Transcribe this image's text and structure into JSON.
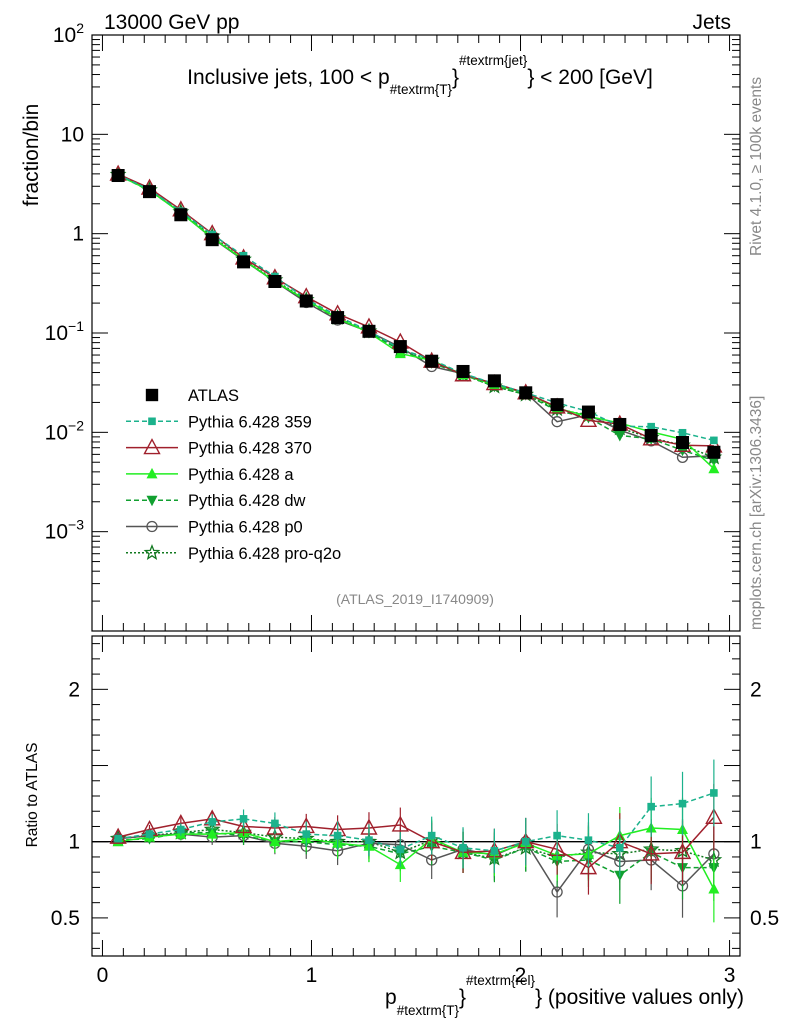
{
  "header": {
    "left": "13000 GeV pp",
    "right": "Jets"
  },
  "side_text": {
    "rivet": "Rivet 4.1.0, ≥ 100k events",
    "mcplots": "mcplots.cern.ch [arXiv:1306.3436]"
  },
  "analysis_id": "(ATLAS_2019_I1740909)",
  "chart_data": [
    {
      "type": "line",
      "scale": "log",
      "title": "Inclusive jets, 100 < p_{#textrm{T}}^{#textrm{jet}} < 200 [GeV]",
      "title_parts": {
        "before": "Inclusive jets, 100 < p",
        "sub": "#textrm{T}",
        "sup": "#textrm{jet}",
        "after": " < 200 [GeV]"
      },
      "ylabel": "fraction/bin",
      "xlim": [
        -0.05,
        3.05
      ],
      "ylim": [
        0.0001,
        100
      ],
      "yticks": [
        {
          "value": 100,
          "base": "10",
          "exp": "2"
        },
        {
          "value": 10,
          "base": "10",
          "exp": ""
        },
        {
          "value": 1,
          "base": "1",
          "exp": ""
        },
        {
          "value": 0.1,
          "base": "10",
          "exp": "−1"
        },
        {
          "value": 0.01,
          "base": "10",
          "exp": "−2"
        },
        {
          "value": 0.001,
          "base": "10",
          "exp": "−3"
        }
      ],
      "x": [
        0.075,
        0.225,
        0.375,
        0.525,
        0.675,
        0.825,
        0.975,
        1.125,
        1.275,
        1.425,
        1.575,
        1.725,
        1.875,
        2.025,
        2.175,
        2.325,
        2.475,
        2.625,
        2.775,
        2.925
      ],
      "series": [
        {
          "name": "ATLAS",
          "color": "#000000",
          "marker": "square",
          "dash": "none",
          "values": [
            3.85,
            2.65,
            1.55,
            0.87,
            0.52,
            0.33,
            0.21,
            0.143,
            0.104,
            0.073,
            0.052,
            0.041,
            0.033,
            0.025,
            0.019,
            0.016,
            0.012,
            0.0093,
            0.0079,
            0.0063
          ]
        },
        {
          "name": "Pythia 6.428 359",
          "color": "#1bb28c",
          "marker": "square-small",
          "dash": "5,3",
          "values": [
            3.92,
            2.78,
            1.68,
            0.98,
            0.6,
            0.37,
            0.22,
            0.148,
            0.105,
            0.069,
            0.054,
            0.039,
            0.031,
            0.025,
            0.0198,
            0.0162,
            0.0115,
            0.0114,
            0.0099,
            0.0083
          ]
        },
        {
          "name": "Pythia 6.428 370",
          "color": "#a0202c",
          "marker": "triangle-open",
          "dash": "none",
          "values": [
            3.98,
            2.88,
            1.74,
            1.0,
            0.57,
            0.36,
            0.232,
            0.156,
            0.115,
            0.081,
            0.052,
            0.038,
            0.031,
            0.025,
            0.018,
            0.0132,
            0.0121,
            0.0086,
            0.0074,
            0.0073
          ]
        },
        {
          "name": "Pythia 6.428 a",
          "color": "#22ee22",
          "marker": "triangle",
          "dash": "none",
          "values": [
            3.87,
            2.73,
            1.62,
            0.91,
            0.55,
            0.33,
            0.215,
            0.141,
            0.101,
            0.062,
            0.053,
            0.038,
            0.03,
            0.025,
            0.0175,
            0.0145,
            0.0124,
            0.0101,
            0.0085,
            0.0043
          ]
        },
        {
          "name": "Pythia 6.428 dw",
          "color": "#11a030",
          "marker": "triangle-down",
          "dash": "5,3",
          "values": [
            3.89,
            2.71,
            1.64,
            0.92,
            0.54,
            0.33,
            0.21,
            0.14,
            0.101,
            0.067,
            0.05,
            0.038,
            0.029,
            0.024,
            0.0165,
            0.0141,
            0.0093,
            0.0086,
            0.0066,
            0.0052
          ]
        },
        {
          "name": "Pythia 6.428 p0",
          "color": "#555555",
          "marker": "circle-open",
          "dash": "none",
          "values": [
            3.92,
            2.76,
            1.63,
            0.9,
            0.54,
            0.33,
            0.203,
            0.135,
            0.103,
            0.072,
            0.046,
            0.039,
            0.03,
            0.025,
            0.0128,
            0.015,
            0.0105,
            0.0082,
            0.0056,
            0.0058
          ]
        },
        {
          "name": "Pythia 6.428 pro-q2o",
          "color": "#11791f",
          "marker": "star",
          "dash": "2,2",
          "values": [
            3.93,
            2.75,
            1.65,
            0.94,
            0.55,
            0.34,
            0.215,
            0.142,
            0.104,
            0.068,
            0.053,
            0.038,
            0.029,
            0.024,
            0.0172,
            0.0148,
            0.011,
            0.0088,
            0.0074,
            0.0056
          ]
        }
      ]
    },
    {
      "type": "line",
      "scale": "linear",
      "ylabel": "Ratio to ATLAS",
      "xlabel": "p_{#textrm{T}}^{#textrm{rel}} (positive values only)",
      "xlabel_parts": {
        "before": "p",
        "sub": "#textrm{T}",
        "sup": "#textrm{rel}",
        "after": " (positive values only)"
      },
      "xlim": [
        -0.05,
        3.05
      ],
      "ylim": [
        0.25,
        2.35
      ],
      "xticks": [
        0,
        1,
        2,
        3
      ],
      "xtick_labels": [
        "0",
        "1",
        "2",
        "3"
      ],
      "yticks": [
        0.5,
        1,
        2
      ],
      "ytick_labels": [
        "0.5",
        "1",
        "2"
      ],
      "reference": 1,
      "x": [
        0.075,
        0.225,
        0.375,
        0.525,
        0.675,
        0.825,
        0.975,
        1.125,
        1.275,
        1.425,
        1.575,
        1.725,
        1.875,
        2.025,
        2.175,
        2.325,
        2.475,
        2.625,
        2.775,
        2.925
      ],
      "series": [
        {
          "name": "Pythia 6.428 359",
          "color": "#1bb28c",
          "marker": "square-small",
          "dash": "5,3",
          "values": [
            1.02,
            1.05,
            1.08,
            1.13,
            1.15,
            1.12,
            1.05,
            1.04,
            1.01,
            0.95,
            1.04,
            0.96,
            0.94,
            1.0,
            1.04,
            1.01,
            0.96,
            1.23,
            1.25,
            1.32
          ]
        },
        {
          "name": "Pythia 6.428 370",
          "color": "#a0202c",
          "marker": "triangle-open",
          "dash": "none",
          "values": [
            1.03,
            1.08,
            1.12,
            1.15,
            1.1,
            1.09,
            1.1,
            1.08,
            1.09,
            1.11,
            1.0,
            0.93,
            0.94,
            1.0,
            0.95,
            0.83,
            1.0,
            0.92,
            0.93,
            1.16
          ]
        },
        {
          "name": "Pythia 6.428 a",
          "color": "#22ee22",
          "marker": "triangle",
          "dash": "none",
          "values": [
            1.0,
            1.03,
            1.05,
            1.05,
            1.06,
            1.0,
            1.02,
            0.99,
            0.97,
            0.85,
            1.02,
            0.93,
            0.92,
            0.99,
            0.91,
            0.92,
            1.04,
            1.09,
            1.08,
            0.69
          ]
        },
        {
          "name": "Pythia 6.428 dw",
          "color": "#11a030",
          "marker": "triangle-down",
          "dash": "5,3",
          "values": [
            1.01,
            1.02,
            1.06,
            1.06,
            1.04,
            1.0,
            1.0,
            0.98,
            0.97,
            0.92,
            0.97,
            0.93,
            0.88,
            0.96,
            0.87,
            0.88,
            0.78,
            0.93,
            0.83,
            0.83
          ]
        },
        {
          "name": "Pythia 6.428 p0",
          "color": "#555555",
          "marker": "circle-open",
          "dash": "none",
          "values": [
            1.02,
            1.04,
            1.05,
            1.03,
            1.04,
            0.99,
            0.97,
            0.94,
            0.99,
            0.98,
            0.88,
            0.95,
            0.91,
            1.0,
            0.67,
            0.95,
            0.87,
            0.88,
            0.71,
            0.92
          ]
        },
        {
          "name": "Pythia 6.428 pro-q2o",
          "color": "#11791f",
          "marker": "star",
          "dash": "2,2",
          "values": [
            1.02,
            1.04,
            1.06,
            1.08,
            1.06,
            1.03,
            1.02,
            1.0,
            1.0,
            0.93,
            1.01,
            0.93,
            0.89,
            0.96,
            0.9,
            0.93,
            0.92,
            0.95,
            0.94,
            0.88
          ]
        }
      ]
    }
  ]
}
